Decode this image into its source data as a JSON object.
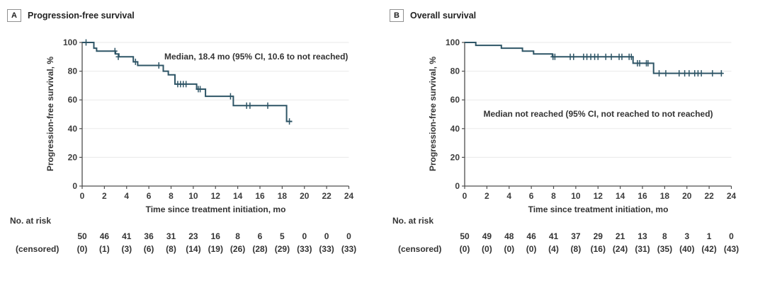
{
  "chart_data": [
    {
      "type": "line",
      "subtype": "kaplan-meier-step",
      "panel_label": "A",
      "title": "Progression-free survival",
      "ylabel": "Progression-free survival, %",
      "xlabel": "Time since treatment initiation, mo",
      "annotation": "Median, 18.4 mo (95% CI, 10.6 to not reached)",
      "xlim": [
        0,
        24
      ],
      "ylim": [
        0,
        100
      ],
      "xticks": [
        0,
        2,
        4,
        6,
        8,
        10,
        12,
        14,
        16,
        18,
        20,
        22,
        24
      ],
      "yticks": [
        0,
        20,
        40,
        60,
        80,
        100
      ],
      "grid": "horizontal",
      "legend": "none",
      "line_color": "#2e5566",
      "axis_color": "#4f4f4f",
      "grid_color": "#eaeaea",
      "steps": [
        [
          0,
          100
        ],
        [
          1.05,
          96
        ],
        [
          1.3,
          94
        ],
        [
          3.0,
          92
        ],
        [
          3.3,
          90
        ],
        [
          4.6,
          86.5
        ],
        [
          5.0,
          84
        ],
        [
          7.3,
          80
        ],
        [
          7.75,
          77.5
        ],
        [
          8.35,
          71
        ],
        [
          10.3,
          67.5
        ],
        [
          11.1,
          62.5
        ],
        [
          13.6,
          56
        ],
        [
          18.4,
          45
        ]
      ],
      "end_x": 18.9,
      "censor_marks": [
        [
          0.35,
          100
        ],
        [
          2.95,
          94
        ],
        [
          3.25,
          90
        ],
        [
          4.8,
          86.5
        ],
        [
          6.9,
          84
        ],
        [
          8.6,
          71
        ],
        [
          8.85,
          71
        ],
        [
          9.1,
          71
        ],
        [
          9.35,
          71
        ],
        [
          10.45,
          67.5
        ],
        [
          10.62,
          67.5
        ],
        [
          13.35,
          62.5
        ],
        [
          14.8,
          56
        ],
        [
          15.1,
          56
        ],
        [
          16.7,
          56
        ],
        [
          18.65,
          45
        ]
      ],
      "at_risk_label": "No. at risk",
      "censored_label": "(censored)",
      "at_risk": [
        "50",
        "46",
        "41",
        "36",
        "31",
        "23",
        "16",
        "8",
        "6",
        "5",
        "0",
        "0",
        "0"
      ],
      "censored": [
        "(0)",
        "(1)",
        "(3)",
        "(6)",
        "(8)",
        "(14)",
        "(19)",
        "(26)",
        "(28)",
        "(29)",
        "(33)",
        "(33)",
        "(33)"
      ]
    },
    {
      "type": "line",
      "subtype": "kaplan-meier-step",
      "panel_label": "B",
      "title": "Overall survival",
      "ylabel": "Progression-free survival, %",
      "xlabel": "Time since treatment initiation, mo",
      "annotation": "Median not reached (95% CI, not reached to not reached)",
      "xlim": [
        0,
        24
      ],
      "ylim": [
        0,
        100
      ],
      "xticks": [
        0,
        2,
        4,
        6,
        8,
        10,
        12,
        14,
        16,
        18,
        20,
        22,
        24
      ],
      "yticks": [
        0,
        20,
        40,
        60,
        80,
        100
      ],
      "grid": "horizontal",
      "legend": "none",
      "line_color": "#2e5566",
      "axis_color": "#4f4f4f",
      "grid_color": "#eaeaea",
      "steps": [
        [
          0,
          100
        ],
        [
          1.0,
          98
        ],
        [
          3.3,
          96
        ],
        [
          5.2,
          94
        ],
        [
          6.2,
          92
        ],
        [
          7.9,
          90
        ],
        [
          15.15,
          85.5
        ],
        [
          17.0,
          78.5
        ]
      ],
      "end_x": 23.2,
      "censor_marks": [
        [
          7.95,
          90
        ],
        [
          8.12,
          90
        ],
        [
          9.5,
          90
        ],
        [
          9.8,
          90
        ],
        [
          10.7,
          90
        ],
        [
          11.0,
          90
        ],
        [
          11.35,
          90
        ],
        [
          11.7,
          90
        ],
        [
          12.0,
          90
        ],
        [
          12.7,
          90
        ],
        [
          13.2,
          90
        ],
        [
          13.9,
          90
        ],
        [
          14.15,
          90
        ],
        [
          14.8,
          90
        ],
        [
          15.0,
          90
        ],
        [
          15.55,
          85.5
        ],
        [
          15.75,
          85.5
        ],
        [
          16.35,
          85.5
        ],
        [
          16.5,
          85.5
        ],
        [
          17.5,
          78.5
        ],
        [
          18.1,
          78.5
        ],
        [
          19.3,
          78.5
        ],
        [
          19.8,
          78.5
        ],
        [
          20.2,
          78.5
        ],
        [
          20.7,
          78.5
        ],
        [
          21.0,
          78.5
        ],
        [
          21.3,
          78.5
        ],
        [
          22.3,
          78.5
        ],
        [
          23.1,
          78.5
        ]
      ],
      "at_risk_label": "No. at risk",
      "censored_label": "(censored)",
      "at_risk": [
        "50",
        "49",
        "48",
        "46",
        "41",
        "37",
        "29",
        "21",
        "13",
        "8",
        "3",
        "1",
        "0"
      ],
      "censored": [
        "(0)",
        "(0)",
        "(0)",
        "(0)",
        "(4)",
        "(8)",
        "(16)",
        "(24)",
        "(31)",
        "(35)",
        "(40)",
        "(42)",
        "(43)"
      ]
    }
  ]
}
